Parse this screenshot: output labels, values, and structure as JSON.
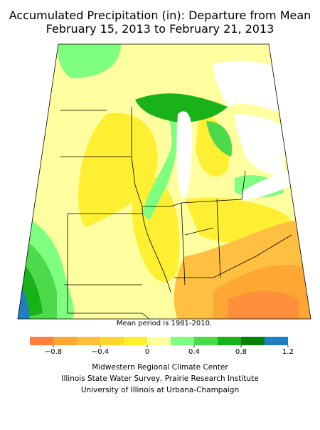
{
  "header": {
    "title_lines": [
      "Accumulated Precipitation (in): Departure from Mean",
      "February 15, 2013 to February 21, 2013"
    ]
  },
  "note": "Mean period is 1981-2010.",
  "colorbar": {
    "bins": [
      -1.0,
      -0.8,
      -0.6,
      -0.4,
      -0.2,
      0,
      0.2,
      0.4,
      0.6,
      0.8,
      1.0,
      1.2
    ],
    "colors": [
      "#ff7f3f",
      "#ffa733",
      "#ffbf40",
      "#ffd633",
      "#ffef33",
      "#ffffa0",
      "#7fff7f",
      "#4cd94c",
      "#19b219",
      "#0a7f0a",
      "#1f7fbf",
      "#40a6ff"
    ],
    "ticks": [
      {
        "value": -0.8,
        "label": "−0.8"
      },
      {
        "value": -0.4,
        "label": "−0.4"
      },
      0,
      0.4,
      0.8,
      1.2
    ]
  },
  "credits": [
    "Midwestern Regional Climate Center",
    "Illinois State Water Survey, Prairie Research Institute",
    "University of Illinois at Urbana-Champaign"
  ]
}
